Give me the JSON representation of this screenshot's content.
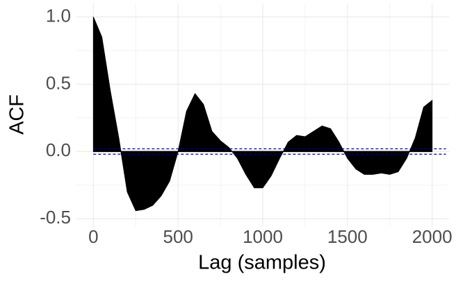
{
  "chart_data": {
    "type": "area",
    "x_label": "Lag (samples)",
    "y_label": "ACF",
    "x": [
      0,
      50,
      100,
      150,
      200,
      250,
      300,
      350,
      400,
      450,
      500,
      550,
      600,
      650,
      700,
      750,
      800,
      850,
      900,
      950,
      1000,
      1050,
      1100,
      1150,
      1200,
      1250,
      1300,
      1350,
      1400,
      1450,
      1500,
      1550,
      1600,
      1650,
      1700,
      1750,
      1800,
      1850,
      1900,
      1950,
      2000
    ],
    "values": [
      1.0,
      0.85,
      0.45,
      0.1,
      -0.3,
      -0.44,
      -0.43,
      -0.4,
      -0.33,
      -0.22,
      0.0,
      0.3,
      0.43,
      0.35,
      0.15,
      0.08,
      0.03,
      -0.05,
      -0.17,
      -0.27,
      -0.27,
      -0.18,
      -0.05,
      0.07,
      0.12,
      0.11,
      0.15,
      0.19,
      0.17,
      0.07,
      -0.05,
      -0.13,
      -0.17,
      -0.17,
      -0.16,
      -0.17,
      -0.15,
      -0.05,
      0.1,
      0.33,
      0.38
    ],
    "color": "#000000",
    "confidence_bounds": [
      0.02,
      -0.02
    ],
    "confidence_color": "#00008b",
    "xlim": [
      -100,
      2100
    ],
    "ylim": [
      -0.56,
      1.1
    ],
    "xticks": [
      0,
      500,
      1000,
      1500,
      2000
    ],
    "yticks": [
      -0.5,
      {
        "value": 0,
        "label": "0.0"
      },
      0.5,
      {
        "value": 1,
        "label": "1.0"
      }
    ],
    "x_minor_ticks": [
      250,
      750,
      1250,
      1750
    ],
    "y_minor_ticks": [
      -0.25,
      0.25,
      0.75
    ],
    "grid": true
  }
}
